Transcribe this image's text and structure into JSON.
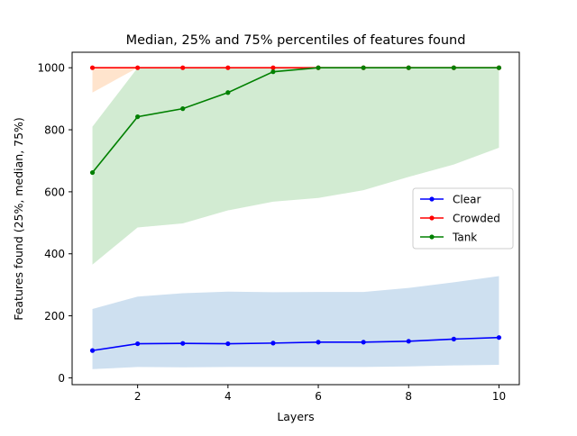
{
  "chart_data": {
    "type": "line",
    "title": "Median, 25% and 75% percentiles of features found",
    "xlabel": "Layers",
    "ylabel": "Features found (25%, median, 75%)",
    "xlim": [
      0.55,
      10.45
    ],
    "ylim": [
      -22,
      1050
    ],
    "xticks": [
      2,
      4,
      6,
      8,
      10
    ],
    "yticks": [
      0,
      200,
      400,
      600,
      800,
      1000
    ],
    "grid": false,
    "legend_position": "center-right",
    "x": [
      1,
      2,
      3,
      4,
      5,
      6,
      7,
      8,
      9,
      10
    ],
    "series": [
      {
        "name": "Clear",
        "color": "#0000ff",
        "band_color": "#b9d3ea",
        "median": [
          88,
          110,
          111,
          110,
          112,
          115,
          115,
          118,
          125,
          130
        ],
        "p25": [
          28,
          35,
          34,
          35,
          35,
          35,
          35,
          37,
          40,
          42
        ],
        "p75": [
          222,
          262,
          273,
          278,
          276,
          277,
          277,
          290,
          308,
          328
        ]
      },
      {
        "name": "Crowded",
        "color": "#ff0000",
        "band_color": "#ffd8b8",
        "median": [
          1000,
          1000,
          1000,
          1000,
          1000,
          1000,
          1000,
          1000,
          1000,
          1000
        ],
        "p25": [
          920,
          1000,
          1000,
          1000,
          1000,
          1000,
          1000,
          1000,
          1000,
          1000
        ],
        "p75": [
          1000,
          1000,
          1000,
          1000,
          1000,
          1000,
          1000,
          1000,
          1000,
          1000
        ]
      },
      {
        "name": "Tank",
        "color": "#008000",
        "band_color": "#bfe3bf",
        "median": [
          662,
          842,
          868,
          920,
          987,
          1000,
          1000,
          1000,
          1000,
          1000
        ],
        "p25": [
          365,
          485,
          498,
          540,
          568,
          580,
          605,
          648,
          688,
          742
        ],
        "p75": [
          810,
          1000,
          1000,
          1000,
          1000,
          1000,
          1000,
          1000,
          1000,
          1000
        ]
      }
    ]
  }
}
